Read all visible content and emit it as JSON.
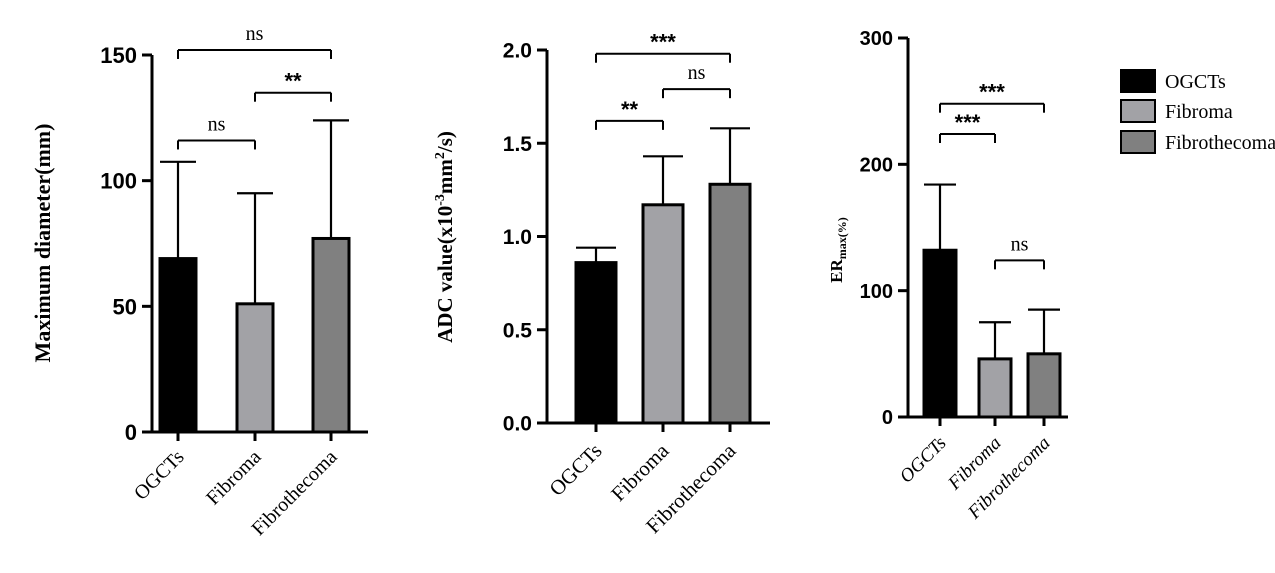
{
  "colors": {
    "OGCTs": "#000000",
    "Fibroma": "#a2a2a6",
    "Fibrothecoma": "#808080",
    "axis": "#000000",
    "background": "#ffffff"
  },
  "legend": {
    "entries": [
      "OGCTs",
      "Fibroma",
      "Fibrothecoma"
    ]
  },
  "chart_data": [
    {
      "type": "bar",
      "id": "diameter",
      "title": "",
      "categories": [
        "OGCTs",
        "Fibroma",
        "Fibrothecoma"
      ],
      "values": [
        69,
        51,
        77
      ],
      "error_upper": [
        107.5,
        95,
        124
      ],
      "ylabel": "Maximum diameter(mm)",
      "xlabel": "",
      "ylim": [
        0,
        150
      ],
      "yticks": [
        0,
        50,
        100,
        150
      ],
      "ytick_labels": [
        "0",
        "50",
        "100",
        "150"
      ],
      "tick_label_style": "bold",
      "category_label_style": "normal",
      "significance": [
        {
          "from": 0,
          "to": 2,
          "y": 152,
          "label": "ns"
        },
        {
          "from": 1,
          "to": 2,
          "y": 135,
          "label": "**"
        },
        {
          "from": 0,
          "to": 1,
          "y": 116,
          "label": "ns"
        }
      ]
    },
    {
      "type": "bar",
      "id": "adc",
      "title": "",
      "categories": [
        "OGCTs",
        "Fibroma",
        "Fibrothecoma"
      ],
      "values": [
        0.86,
        1.17,
        1.28
      ],
      "error_upper": [
        0.94,
        1.43,
        1.58
      ],
      "ylabel": "ADC value(x10-3mm2/s)",
      "ylabel_parts": [
        "ADC value(x10",
        "-3",
        "mm",
        "2",
        "/s)"
      ],
      "xlabel": "",
      "ylim": [
        0,
        2.0
      ],
      "yticks": [
        0,
        0.5,
        1.0,
        1.5,
        2.0
      ],
      "ytick_labels": [
        "0.0",
        "0.5",
        "1.0",
        "1.5",
        "2.0"
      ],
      "tick_label_style": "bold",
      "category_label_style": "normal",
      "significance": [
        {
          "from": 0,
          "to": 2,
          "y": 1.98,
          "label": "***"
        },
        {
          "from": 1,
          "to": 2,
          "y": 1.79,
          "label": "ns"
        },
        {
          "from": 0,
          "to": 1,
          "y": 1.62,
          "label": "**"
        }
      ]
    },
    {
      "type": "bar",
      "id": "ermax",
      "title": "",
      "categories": [
        "OGCTs",
        "Fibroma",
        "Fibrothecoma"
      ],
      "values": [
        132,
        46,
        50
      ],
      "error_upper": [
        184,
        75,
        85
      ],
      "ylabel": "ERmax(%)",
      "ylabel_parts": [
        "ER",
        "max(%)"
      ],
      "xlabel": "",
      "ylim": [
        0,
        300
      ],
      "yticks": [
        0,
        100,
        200,
        300
      ],
      "ytick_labels": [
        "0",
        "100",
        "200",
        "300"
      ],
      "tick_label_style": "bold",
      "category_label_style": "italic",
      "significance": [
        {
          "from": 0,
          "to": 2,
          "y": 248,
          "label": "***"
        },
        {
          "from": 0,
          "to": 1,
          "y": 224,
          "label": "***"
        },
        {
          "from": 1,
          "to": 2,
          "y": 124,
          "label": "ns"
        }
      ]
    }
  ]
}
